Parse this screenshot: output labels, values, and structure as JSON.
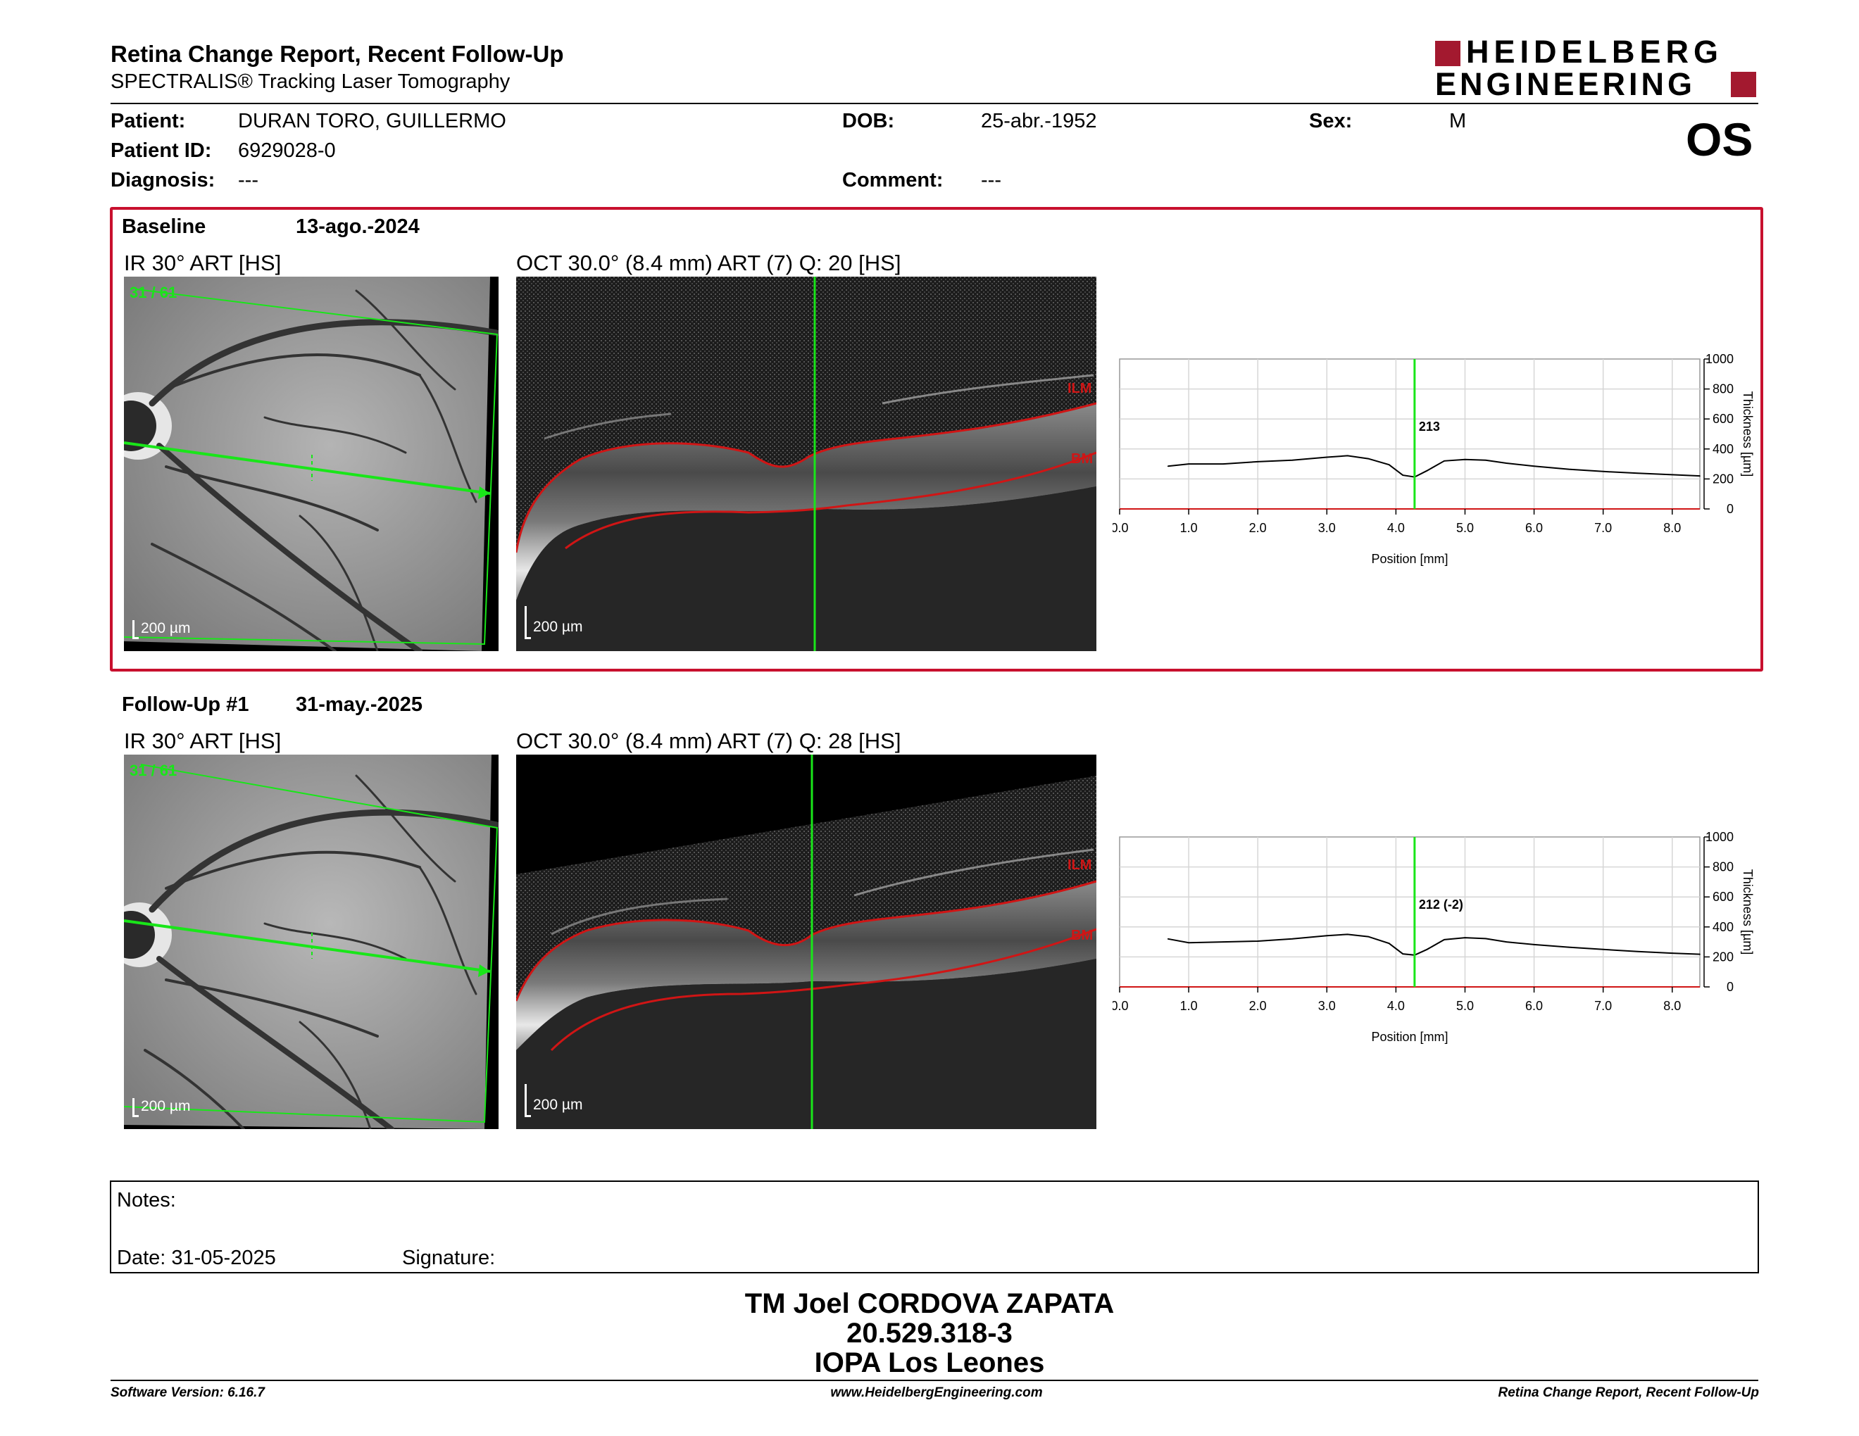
{
  "header": {
    "title": "Retina Change Report, Recent Follow-Up",
    "subtitle": "SPECTRALIS® Tracking Laser Tomography",
    "logo_line1": "HEIDELBERG",
    "logo_line2": "ENGINEERING",
    "eye": "OS"
  },
  "patient": {
    "patient_label": "Patient:",
    "patient_value": "DURAN TORO, GUILLERMO",
    "id_label": "Patient ID:",
    "id_value": "6929028-0",
    "diagnosis_label": "Diagnosis:",
    "diagnosis_value": "---",
    "dob_label": "DOB:",
    "dob_value": "25-abr.-1952",
    "comment_label": "Comment:",
    "comment_value": "---",
    "sex_label": "Sex:",
    "sex_value": "M"
  },
  "exams": [
    {
      "label": "Baseline",
      "date": "13-ago.-2024",
      "ir_title": "IR 30° ART [HS]",
      "oct_title": "OCT 30.0° (8.4 mm) ART (7) Q: 20 [HS]",
      "slice": "31 / 61",
      "scale_ir": "200 µm",
      "scale_oct": "200 µm",
      "ilm": "ILM",
      "bm": "BM",
      "thickness_label": "213"
    },
    {
      "label": "Follow-Up #1",
      "date": "31-may.-2025",
      "ir_title": "IR 30° ART [HS]",
      "oct_title": "OCT 30.0° (8.4 mm) ART (7) Q: 28 [HS]",
      "slice": "31 / 61",
      "scale_ir": "200 µm",
      "scale_oct": "200 µm",
      "ilm": "ILM",
      "bm": "BM",
      "thickness_label": "212 (-2)"
    }
  ],
  "chart_data": [
    {
      "type": "line",
      "xlabel": "Position [mm]",
      "ylabel": "Thickness [µm]",
      "xlim": [
        0,
        8.4
      ],
      "ylim": [
        0,
        1000
      ],
      "xticks": [
        "0.0",
        "1.0",
        "2.0",
        "3.0",
        "4.0",
        "5.0",
        "6.0",
        "7.0",
        "8.0"
      ],
      "yticks": [
        "0",
        "200",
        "400",
        "600",
        "800",
        "1000"
      ],
      "marker_x": 4.27,
      "marker_label": "213",
      "series": [
        {
          "x": [
            0.7,
            1.0,
            1.5,
            2.0,
            2.5,
            3.0,
            3.3,
            3.6,
            3.9,
            4.1,
            4.27,
            4.45,
            4.7,
            5.0,
            5.3,
            5.6,
            6.0,
            6.5,
            7.0,
            7.5,
            8.0,
            8.4
          ],
          "values": [
            285,
            300,
            300,
            315,
            325,
            345,
            355,
            335,
            295,
            225,
            213,
            255,
            320,
            330,
            325,
            305,
            285,
            265,
            250,
            238,
            228,
            220
          ]
        }
      ]
    },
    {
      "type": "line",
      "xlabel": "Position [mm]",
      "ylabel": "Thickness [µm]",
      "xlim": [
        0,
        8.4
      ],
      "ylim": [
        0,
        1000
      ],
      "xticks": [
        "0.0",
        "1.0",
        "2.0",
        "3.0",
        "4.0",
        "5.0",
        "6.0",
        "7.0",
        "8.0"
      ],
      "yticks": [
        "0",
        "200",
        "400",
        "600",
        "800",
        "1000"
      ],
      "marker_x": 4.27,
      "marker_label": "212 (-2)",
      "series": [
        {
          "x": [
            0.7,
            1.0,
            1.5,
            2.0,
            2.5,
            3.0,
            3.3,
            3.6,
            3.9,
            4.1,
            4.27,
            4.45,
            4.7,
            5.0,
            5.3,
            5.6,
            6.0,
            6.5,
            7.0,
            7.5,
            8.0,
            8.4
          ],
          "values": [
            320,
            295,
            300,
            305,
            320,
            342,
            350,
            335,
            290,
            220,
            212,
            250,
            315,
            328,
            322,
            300,
            282,
            265,
            250,
            236,
            225,
            218
          ]
        }
      ]
    }
  ],
  "notes": {
    "label": "Notes:",
    "date_label": "Date: 31-05-2025",
    "signature_label": "Signature:"
  },
  "stamp": {
    "line1": "TM Joel CORDOVA ZAPATA",
    "line2": "20.529.318-3",
    "line3": "IOPA Los Leones"
  },
  "footer": {
    "version": "Software Version: 6.16.7",
    "website": "www.HeidelbergEngineering.com",
    "report_name": "Retina Change Report, Recent Follow-Up"
  },
  "colors": {
    "brand_red": "#a3192f",
    "scan_green": "#19e619",
    "layer_red": "#d01515"
  }
}
